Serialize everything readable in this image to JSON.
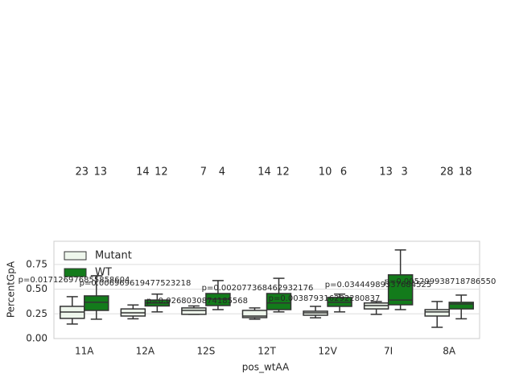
{
  "chart_data": {
    "type": "box",
    "categories": [
      "11A",
      "12A",
      "12S",
      "12T",
      "12V",
      "7I",
      "8A"
    ],
    "series": [
      {
        "name": "Mutant",
        "color": "#eef6ec",
        "q1": [
          0.204,
          0.228,
          0.245,
          0.212,
          0.236,
          0.3,
          0.228
        ],
        "median": [
          0.269,
          0.26,
          0.285,
          0.228,
          0.26,
          0.334,
          0.27
        ],
        "q3": [
          0.326,
          0.3,
          0.31,
          0.285,
          0.277,
          0.36,
          0.293
        ],
        "whislo": [
          0.147,
          0.2,
          0.245,
          0.196,
          0.21,
          0.245,
          0.114
        ],
        "whishi": [
          0.424,
          0.34,
          0.33,
          0.31,
          0.326,
          0.375,
          0.375
        ],
        "n": [
          23,
          14,
          7,
          14,
          10,
          13,
          28
        ]
      },
      {
        "name": "WT",
        "color": "#137b1b",
        "q1": [
          0.285,
          0.33,
          0.334,
          0.293,
          0.326,
          0.342,
          0.3
        ],
        "median": [
          0.367,
          0.36,
          0.4,
          0.36,
          0.367,
          0.39,
          0.35
        ],
        "q3": [
          0.432,
          0.39,
          0.456,
          0.456,
          0.416,
          0.645,
          0.367
        ],
        "whislo": [
          0.196,
          0.27,
          0.293,
          0.27,
          0.27,
          0.293,
          0.2
        ],
        "whishi": [
          0.636,
          0.45,
          0.587,
          0.61,
          0.45,
          0.897,
          0.44
        ],
        "n": [
          13,
          12,
          4,
          12,
          6,
          3,
          18
        ]
      }
    ],
    "annotations": [
      "p=0.017126976855858604",
      "p=0.006969619477523218",
      "p=0.0268030874185568",
      "p=0.002077368462932176",
      "p=0.003879316292280837",
      "p=0.03444989337684525",
      "p=0.005299938718786550"
    ],
    "xlabel": "pos_wtAA",
    "ylabel": "PercentGpA",
    "ylim": [
      0,
      0.985
    ],
    "yticks": [
      {
        "value": 0,
        "label": "0.00"
      },
      {
        "value": 0.25,
        "label": "0.25"
      },
      {
        "value": 0.5,
        "label": "0.50"
      },
      {
        "value": 0.75,
        "label": "0.75"
      }
    ],
    "grid": true,
    "legend": "upper left"
  }
}
